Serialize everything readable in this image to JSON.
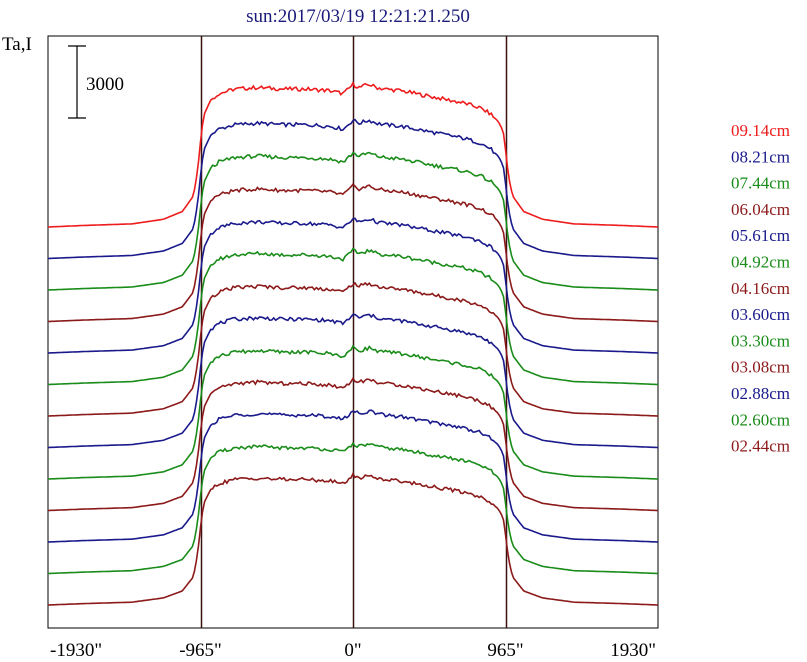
{
  "chart_data": {
    "type": "line",
    "title": "sun:2017/03/19 12:21:21.250",
    "ylabel": "Ta,I",
    "scale_bar_label": "3000",
    "scale_bar_value": 3000,
    "xlim": [
      -1930,
      1930
    ],
    "x_ticks": [
      {
        "value": -1930,
        "label": "-1930\""
      },
      {
        "value": -965,
        "label": "-965\""
      },
      {
        "value": 0,
        "label": "0\""
      },
      {
        "value": 965,
        "label": "965\""
      },
      {
        "value": 1930,
        "label": "1930\""
      }
    ],
    "vertical_markers": [
      -965,
      0,
      965
    ],
    "profile_shape": {
      "x": [
        -1930,
        -1700,
        -1400,
        -1200,
        -1080,
        -1010,
        -985,
        -965,
        -945,
        -900,
        -850,
        -750,
        -600,
        -450,
        -300,
        -150,
        -60,
        -20,
        0,
        40,
        100,
        150,
        200,
        300,
        450,
        600,
        700,
        800,
        870,
        920,
        950,
        965,
        985,
        1010,
        1080,
        1200,
        1400,
        1700,
        1930
      ],
      "y": [
        0,
        0.01,
        0.02,
        0.05,
        0.1,
        0.2,
        0.35,
        0.55,
        0.72,
        0.82,
        0.86,
        0.89,
        0.9,
        0.89,
        0.89,
        0.88,
        0.86,
        0.9,
        0.92,
        0.9,
        0.92,
        0.9,
        0.89,
        0.88,
        0.85,
        0.82,
        0.8,
        0.77,
        0.73,
        0.68,
        0.62,
        0.5,
        0.32,
        0.2,
        0.1,
        0.05,
        0.02,
        0.01,
        0
      ]
    },
    "series": [
      {
        "name": "09.14cm",
        "color": "#ee1c1c",
        "amplitude": 1.0
      },
      {
        "name": "08.21cm",
        "color": "#1a1a8c",
        "amplitude": 0.97
      },
      {
        "name": "07.44cm",
        "color": "#1a8c1a",
        "amplitude": 0.96
      },
      {
        "name": "06.04cm",
        "color": "#8c1a1a",
        "amplitude": 0.95
      },
      {
        "name": "05.61cm",
        "color": "#1a1a8c",
        "amplitude": 0.94
      },
      {
        "name": "04.92cm",
        "color": "#1a8c1a",
        "amplitude": 0.94
      },
      {
        "name": "04.16cm",
        "color": "#8c1a1a",
        "amplitude": 0.93
      },
      {
        "name": "03.60cm",
        "color": "#1a1a8c",
        "amplitude": 0.93
      },
      {
        "name": "03.30cm",
        "color": "#1a8c1a",
        "amplitude": 0.92
      },
      {
        "name": "03.08cm",
        "color": "#8c1a1a",
        "amplitude": 0.92
      },
      {
        "name": "02.88cm",
        "color": "#1a1a8c",
        "amplitude": 0.92
      },
      {
        "name": "02.60cm",
        "color": "#1a8c1a",
        "amplitude": 0.91
      },
      {
        "name": "02.44cm",
        "color": "#8c1a1a",
        "amplitude": 0.91
      }
    ],
    "grid": false,
    "legend_position": "right"
  }
}
